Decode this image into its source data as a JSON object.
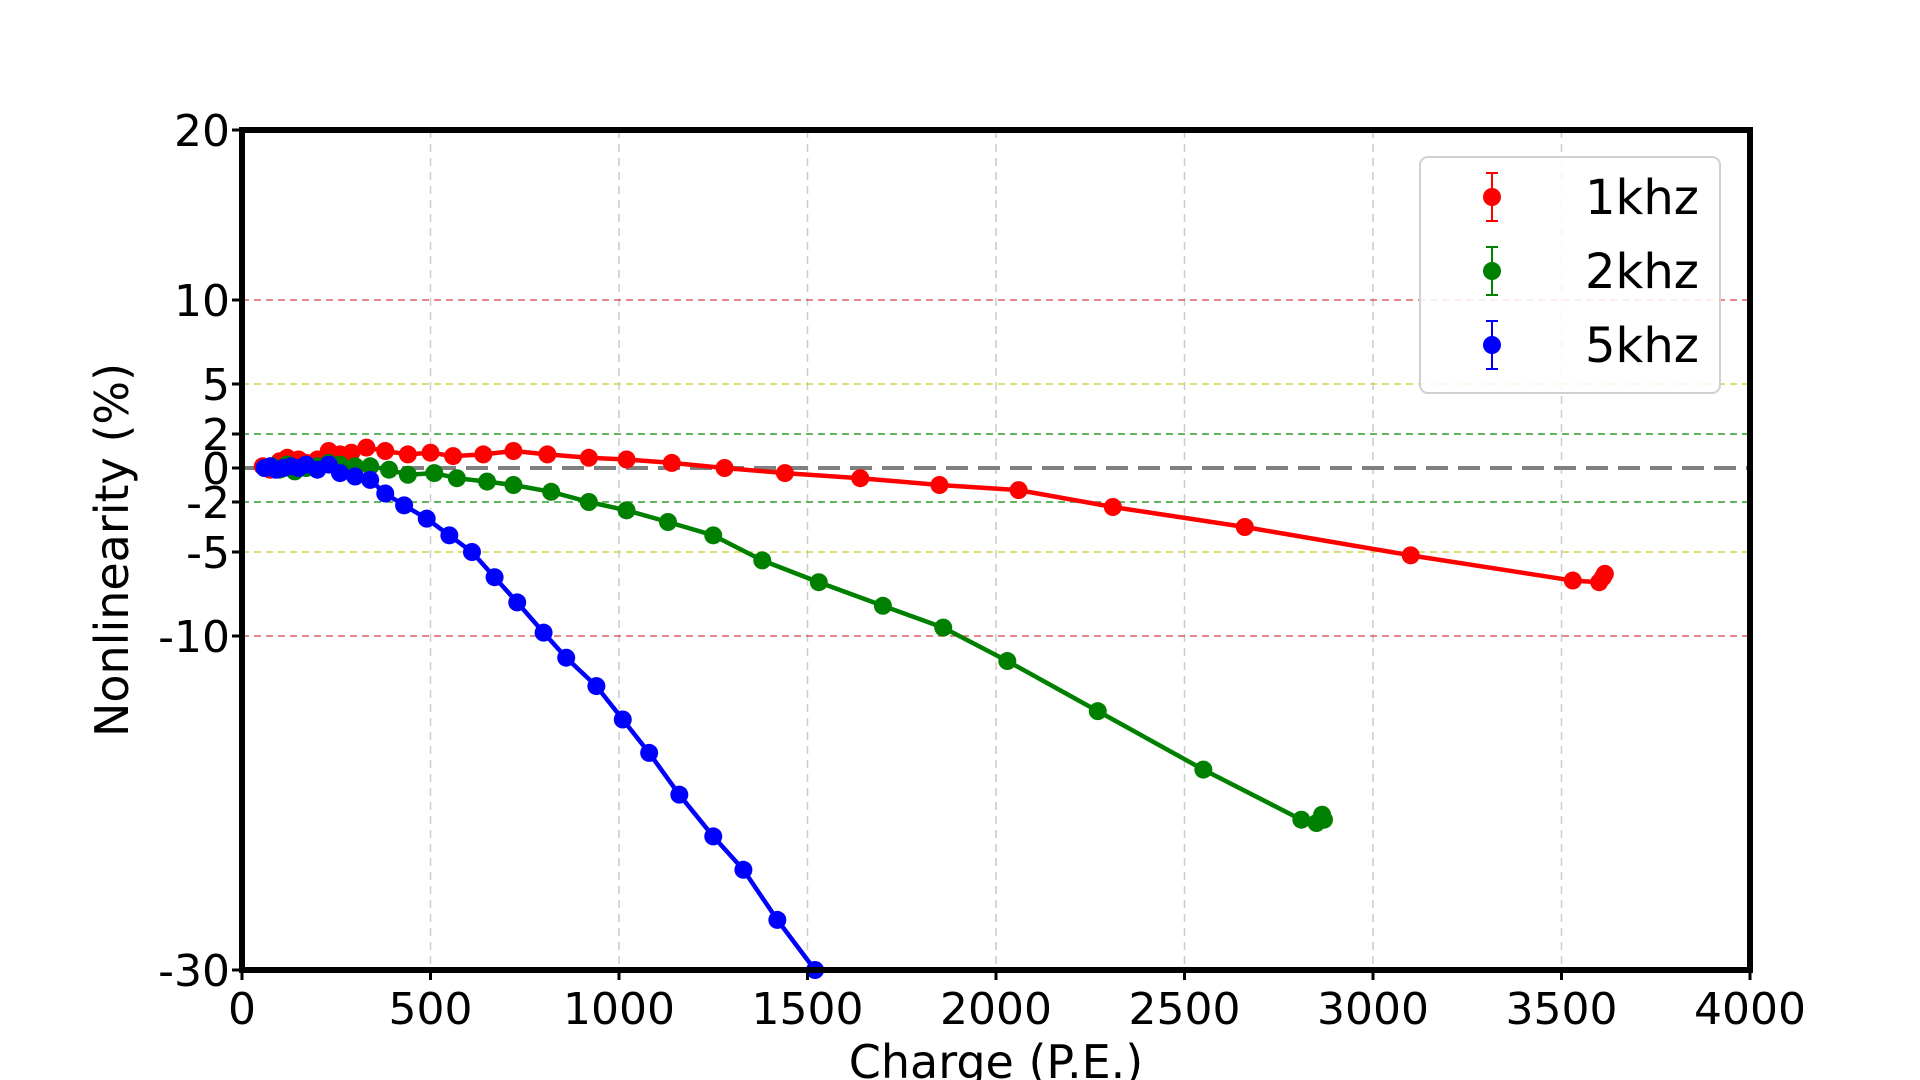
{
  "chart_data": {
    "type": "line",
    "title": "",
    "xlabel": "Charge (P.E.)",
    "ylabel": "Nonlinearity (%)",
    "xlim": [
      0,
      4000
    ],
    "ylim": [
      -30,
      20
    ],
    "y_scale": "symlog",
    "x_ticks": [
      "0",
      "500",
      "1000",
      "1500",
      "2000",
      "2500",
      "3000",
      "3500",
      "4000"
    ],
    "x_tick_values": [
      0,
      500,
      1000,
      1500,
      2000,
      2500,
      3000,
      3500,
      4000
    ],
    "y_ticks": [
      "20",
      "10",
      "5",
      "2",
      "0",
      "-2",
      "-5",
      "-10",
      "-30"
    ],
    "y_tick_values": [
      20,
      10,
      5,
      2,
      0,
      -2,
      -5,
      -10,
      -30
    ],
    "grid": true,
    "reference_lines": [
      {
        "y": 0,
        "color": "#808080",
        "style": "dashed"
      },
      {
        "y": 2,
        "color": "#2ca02c",
        "style": "dashed"
      },
      {
        "y": -2,
        "color": "#2ca02c",
        "style": "dashed"
      },
      {
        "y": 5,
        "color": "#d4d44a",
        "style": "dashed"
      },
      {
        "y": -5,
        "color": "#d4d44a",
        "style": "dashed"
      },
      {
        "y": 10,
        "color": "#e06060",
        "style": "dashed"
      },
      {
        "y": -10,
        "color": "#e06060",
        "style": "dashed"
      }
    ],
    "legend_position": "top-right",
    "series": [
      {
        "name": "1khz",
        "color": "#ff0000",
        "points": [
          [
            55,
            0.1
          ],
          [
            75,
            -0.1
          ],
          [
            100,
            0.4
          ],
          [
            120,
            0.6
          ],
          [
            150,
            0.5
          ],
          [
            170,
            0.3
          ],
          [
            200,
            0.5
          ],
          [
            230,
            1.0
          ],
          [
            260,
            0.8
          ],
          [
            290,
            0.9
          ],
          [
            330,
            1.2
          ],
          [
            380,
            1.0
          ],
          [
            440,
            0.8
          ],
          [
            500,
            0.9
          ],
          [
            560,
            0.7
          ],
          [
            640,
            0.8
          ],
          [
            720,
            1.0
          ],
          [
            810,
            0.8
          ],
          [
            920,
            0.6
          ],
          [
            1020,
            0.5
          ],
          [
            1140,
            0.3
          ],
          [
            1280,
            0.0
          ],
          [
            1440,
            -0.3
          ],
          [
            1640,
            -0.6
          ],
          [
            1850,
            -1.0
          ],
          [
            2060,
            -1.3
          ],
          [
            2310,
            -2.3
          ],
          [
            2660,
            -3.5
          ],
          [
            3100,
            -5.2
          ],
          [
            3530,
            -6.7
          ],
          [
            3600,
            -6.8
          ],
          [
            3610,
            -6.5
          ],
          [
            3615,
            -6.3
          ]
        ]
      },
      {
        "name": "2khz",
        "color": "#008000",
        "points": [
          [
            60,
            0.0
          ],
          [
            80,
            0.1
          ],
          [
            100,
            -0.1
          ],
          [
            120,
            0.2
          ],
          [
            140,
            -0.2
          ],
          [
            170,
            0.0
          ],
          [
            200,
            0.1
          ],
          [
            230,
            0.3
          ],
          [
            260,
            0.2
          ],
          [
            300,
            0.1
          ],
          [
            340,
            0.1
          ],
          [
            390,
            -0.1
          ],
          [
            440,
            -0.4
          ],
          [
            510,
            -0.3
          ],
          [
            570,
            -0.6
          ],
          [
            650,
            -0.8
          ],
          [
            720,
            -1.0
          ],
          [
            820,
            -1.4
          ],
          [
            920,
            -2.0
          ],
          [
            1020,
            -2.5
          ],
          [
            1130,
            -3.2
          ],
          [
            1250,
            -4.0
          ],
          [
            1380,
            -5.5
          ],
          [
            1530,
            -6.8
          ],
          [
            1700,
            -8.2
          ],
          [
            1860,
            -9.5
          ],
          [
            2030,
            -11.5
          ],
          [
            2270,
            -14.5
          ],
          [
            2550,
            -18.0
          ],
          [
            2810,
            -21.0
          ],
          [
            2850,
            -21.2
          ],
          [
            2870,
            -21.0
          ],
          [
            2865,
            -20.7
          ]
        ]
      },
      {
        "name": "5khz",
        "color": "#0000ff",
        "points": [
          [
            60,
            0.0
          ],
          [
            75,
            0.1
          ],
          [
            90,
            -0.1
          ],
          [
            110,
            0.0
          ],
          [
            130,
            0.1
          ],
          [
            150,
            0.0
          ],
          [
            170,
            0.2
          ],
          [
            200,
            -0.1
          ],
          [
            230,
            0.2
          ],
          [
            260,
            -0.3
          ],
          [
            300,
            -0.5
          ],
          [
            340,
            -0.7
          ],
          [
            380,
            -1.5
          ],
          [
            430,
            -2.2
          ],
          [
            490,
            -3.0
          ],
          [
            550,
            -4.0
          ],
          [
            610,
            -5.0
          ],
          [
            670,
            -6.5
          ],
          [
            730,
            -8.0
          ],
          [
            800,
            -9.8
          ],
          [
            860,
            -11.3
          ],
          [
            940,
            -13.0
          ],
          [
            1010,
            -15.0
          ],
          [
            1080,
            -17.0
          ],
          [
            1160,
            -19.5
          ],
          [
            1250,
            -22.0
          ],
          [
            1330,
            -24.0
          ],
          [
            1420,
            -27.0
          ],
          [
            1520,
            -30.0
          ]
        ]
      }
    ]
  }
}
